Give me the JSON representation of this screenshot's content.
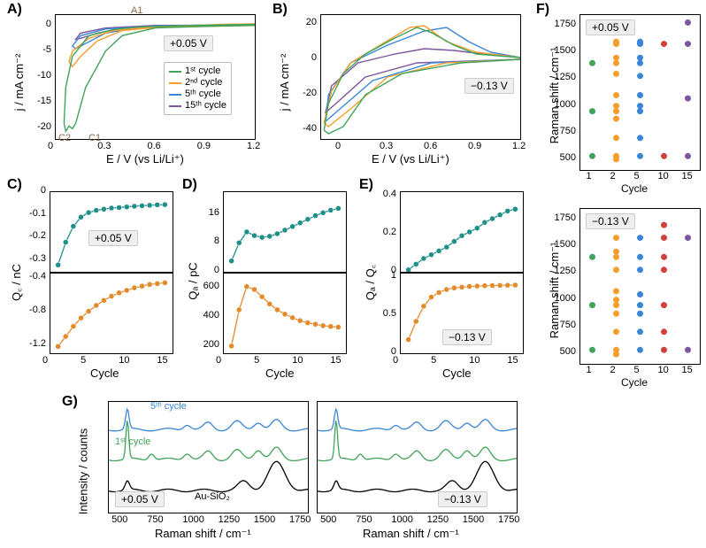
{
  "colors": {
    "c1": "#41a35a",
    "c2": "#f59e2d",
    "c5": "#3a86d6",
    "c10": "#d2403d",
    "c15": "#7c569e",
    "teal": "#1f8f89",
    "orange": "#e38a2a",
    "black": "#000000",
    "grid": "#e0e0e0",
    "badge_bg": "#efefef",
    "au_annot": "#8c6b49"
  },
  "panelA": {
    "label": "A)",
    "badge": "+0.05 V",
    "xlabel": "E / V (vs Li/Li⁺)",
    "ylabel": "j / mA cm⁻²",
    "xlim": [
      0,
      1.2
    ],
    "xticks": [
      0,
      0.3,
      0.6,
      0.9,
      1.2
    ],
    "ylim": [
      -22,
      2
    ],
    "yticks": [
      -20,
      -15,
      -10,
      -5,
      0
    ],
    "annot": {
      "A1": "A1",
      "C1": "C1",
      "C2": "C2"
    },
    "legend": [
      {
        "label": "1ˢᵗ cycle"
      },
      {
        "label": "2ⁿᵈ cycle"
      },
      {
        "label": "5ᵗʰ cycle"
      },
      {
        "label": "15ᵗʰ cycle"
      }
    ],
    "series": {
      "c1": [
        [
          1.2,
          0
        ],
        [
          0.9,
          -0.2
        ],
        [
          0.6,
          -0.5
        ],
        [
          0.4,
          -2
        ],
        [
          0.3,
          -5
        ],
        [
          0.18,
          -12
        ],
        [
          0.12,
          -19
        ],
        [
          0.1,
          -20
        ],
        [
          0.08,
          -19.5
        ],
        [
          0.06,
          -20.5
        ],
        [
          0.05,
          -19
        ],
        [
          0.06,
          -12
        ],
        [
          0.1,
          -6
        ],
        [
          0.2,
          -2
        ],
        [
          0.35,
          -0.8
        ],
        [
          0.5,
          -0.3
        ],
        [
          0.8,
          0
        ],
        [
          1.2,
          0.2
        ]
      ],
      "c2": [
        [
          1.2,
          0
        ],
        [
          0.9,
          -0.2
        ],
        [
          0.6,
          -0.4
        ],
        [
          0.4,
          -1
        ],
        [
          0.25,
          -3
        ],
        [
          0.15,
          -6
        ],
        [
          0.1,
          -8
        ],
        [
          0.08,
          -7
        ],
        [
          0.1,
          -5
        ],
        [
          0.2,
          -2.5
        ],
        [
          0.35,
          -1
        ],
        [
          0.6,
          -0.3
        ],
        [
          1.0,
          0.2
        ],
        [
          1.2,
          0.3
        ]
      ],
      "c5": [
        [
          1.2,
          0
        ],
        [
          0.8,
          -0.1
        ],
        [
          0.5,
          -0.4
        ],
        [
          0.3,
          -1.5
        ],
        [
          0.18,
          -3.5
        ],
        [
          0.12,
          -4.5
        ],
        [
          0.1,
          -4
        ],
        [
          0.15,
          -2
        ],
        [
          0.3,
          -0.7
        ],
        [
          0.6,
          -0.1
        ],
        [
          1.2,
          0.2
        ]
      ],
      "c15": [
        [
          1.2,
          0
        ],
        [
          0.7,
          -0.1
        ],
        [
          0.4,
          -0.5
        ],
        [
          0.25,
          -1.5
        ],
        [
          0.15,
          -2.5
        ],
        [
          0.12,
          -2.7
        ],
        [
          0.15,
          -1.5
        ],
        [
          0.3,
          -0.5
        ],
        [
          0.6,
          0
        ],
        [
          1.2,
          0.1
        ]
      ]
    }
  },
  "panelB": {
    "label": "B)",
    "badge": "−0.13 V",
    "xlabel": "E / V (vs Li/Li⁺)",
    "ylabel": "j / mA cm⁻²",
    "xlim": [
      -0.15,
      1.2
    ],
    "xticks": [
      0,
      0.3,
      0.6,
      0.9,
      1.2
    ],
    "ylim": [
      -45,
      25
    ],
    "yticks": [
      -40,
      -20,
      0,
      20
    ],
    "series": {
      "c1": [
        [
          1.2,
          0
        ],
        [
          0.8,
          -2
        ],
        [
          0.4,
          -8
        ],
        [
          0.15,
          -20
        ],
        [
          0.0,
          -38
        ],
        [
          -0.1,
          -42
        ],
        [
          -0.13,
          -40
        ],
        [
          -0.1,
          -25
        ],
        [
          0.0,
          -8
        ],
        [
          0.15,
          3
        ],
        [
          0.35,
          12
        ],
        [
          0.5,
          18
        ],
        [
          0.6,
          15
        ],
        [
          0.75,
          8
        ],
        [
          0.9,
          3
        ],
        [
          1.2,
          1
        ]
      ],
      "c2": [
        [
          1.2,
          0
        ],
        [
          0.7,
          -2
        ],
        [
          0.3,
          -10
        ],
        [
          0.05,
          -28
        ],
        [
          -0.1,
          -38
        ],
        [
          -0.13,
          -36
        ],
        [
          -0.08,
          -18
        ],
        [
          0.05,
          -2
        ],
        [
          0.25,
          8
        ],
        [
          0.45,
          18
        ],
        [
          0.55,
          19
        ],
        [
          0.7,
          10
        ],
        [
          0.9,
          4
        ],
        [
          1.2,
          1
        ]
      ],
      "c5": [
        [
          1.2,
          0
        ],
        [
          0.6,
          -2
        ],
        [
          0.2,
          -12
        ],
        [
          -0.05,
          -30
        ],
        [
          -0.12,
          -35
        ],
        [
          -0.1,
          -20
        ],
        [
          0.05,
          -2
        ],
        [
          0.3,
          8
        ],
        [
          0.55,
          16
        ],
        [
          0.7,
          18
        ],
        [
          0.85,
          10
        ],
        [
          1.0,
          4
        ],
        [
          1.2,
          1
        ]
      ],
      "c15": [
        [
          1.2,
          0
        ],
        [
          0.5,
          -2
        ],
        [
          0.15,
          -10
        ],
        [
          -0.05,
          -25
        ],
        [
          -0.12,
          -30
        ],
        [
          -0.08,
          -15
        ],
        [
          0.1,
          -2
        ],
        [
          0.35,
          3
        ],
        [
          0.55,
          6
        ],
        [
          0.75,
          5
        ],
        [
          0.95,
          3
        ],
        [
          1.2,
          1
        ]
      ]
    }
  },
  "panelC": {
    "label": "C)",
    "badge_top": "+0.05 V",
    "ylabel": "Q꜀ / nC",
    "xlabel": "Cycle",
    "xticks": [
      0,
      5,
      10,
      15
    ],
    "top": {
      "ylim": [
        -0.35,
        0
      ],
      "yticks": [
        -0.3,
        -0.2,
        -0.1,
        0.0
      ],
      "color": "teal",
      "data": [
        [
          1,
          -0.32
        ],
        [
          2,
          -0.22
        ],
        [
          3,
          -0.15
        ],
        [
          4,
          -0.11
        ],
        [
          5,
          -0.09
        ],
        [
          6,
          -0.08
        ],
        [
          7,
          -0.075
        ],
        [
          8,
          -0.07
        ],
        [
          9,
          -0.068
        ],
        [
          10,
          -0.065
        ],
        [
          11,
          -0.062
        ],
        [
          12,
          -0.06
        ],
        [
          13,
          -0.058
        ],
        [
          14,
          -0.056
        ],
        [
          15,
          -0.055
        ]
      ]
    },
    "bot": {
      "ylim": [
        -1.3,
        -0.35
      ],
      "yticks": [
        -1.2,
        -0.8,
        -0.4
      ],
      "color": "orange",
      "data": [
        [
          1,
          -1.22
        ],
        [
          2,
          -1.1
        ],
        [
          3,
          -0.98
        ],
        [
          4,
          -0.88
        ],
        [
          5,
          -0.8
        ],
        [
          6,
          -0.73
        ],
        [
          7,
          -0.67
        ],
        [
          8,
          -0.62
        ],
        [
          9,
          -0.58
        ],
        [
          10,
          -0.55
        ],
        [
          11,
          -0.52
        ],
        [
          12,
          -0.5
        ],
        [
          13,
          -0.48
        ],
        [
          14,
          -0.47
        ],
        [
          15,
          -0.46
        ]
      ]
    }
  },
  "panelD": {
    "label": "D)",
    "ylabel": "Qₐ / pC",
    "xlabel": "Cycle",
    "xticks": [
      0,
      5,
      10,
      15
    ],
    "top": {
      "ylim": [
        0,
        22
      ],
      "yticks": [
        0,
        8,
        16
      ],
      "color": "teal",
      "data": [
        [
          1,
          3
        ],
        [
          2,
          8
        ],
        [
          3,
          11
        ],
        [
          4,
          10
        ],
        [
          5,
          9.5
        ],
        [
          6,
          9.8
        ],
        [
          7,
          10.5
        ],
        [
          8,
          11.5
        ],
        [
          9,
          12.5
        ],
        [
          10,
          13.5
        ],
        [
          11,
          14.5
        ],
        [
          12,
          15.5
        ],
        [
          13,
          16.3
        ],
        [
          14,
          17
        ],
        [
          15,
          17.5
        ]
      ]
    },
    "bot": {
      "ylim": [
        150,
        700
      ],
      "yticks": [
        200,
        400,
        600
      ],
      "color": "orange",
      "data": [
        [
          1,
          200
        ],
        [
          2,
          450
        ],
        [
          3,
          610
        ],
        [
          4,
          590
        ],
        [
          5,
          540
        ],
        [
          6,
          490
        ],
        [
          7,
          450
        ],
        [
          8,
          420
        ],
        [
          9,
          395
        ],
        [
          10,
          375
        ],
        [
          11,
          360
        ],
        [
          12,
          350
        ],
        [
          13,
          340
        ],
        [
          14,
          335
        ],
        [
          15,
          330
        ]
      ]
    }
  },
  "panelE": {
    "label": "E)",
    "badge_bot": "−0.13 V",
    "ylabel": "Qₐ / Q꜀",
    "xlabel": "Cycle",
    "xticks": [
      0,
      5,
      10,
      15
    ],
    "top": {
      "ylim": [
        0,
        0.42
      ],
      "yticks": [
        0,
        0.2,
        0.4
      ],
      "color": "teal",
      "data": [
        [
          1,
          0.01
        ],
        [
          2,
          0.04
        ],
        [
          3,
          0.07
        ],
        [
          4,
          0.09
        ],
        [
          5,
          0.11
        ],
        [
          6,
          0.13
        ],
        [
          7,
          0.16
        ],
        [
          8,
          0.19
        ],
        [
          9,
          0.21
        ],
        [
          10,
          0.23
        ],
        [
          11,
          0.26
        ],
        [
          12,
          0.28
        ],
        [
          13,
          0.3
        ],
        [
          14,
          0.32
        ],
        [
          15,
          0.33
        ]
      ]
    },
    "bot": {
      "ylim": [
        0,
        1.05
      ],
      "yticks": [
        0,
        0.5,
        1
      ],
      "color": "orange",
      "data": [
        [
          1,
          0.18
        ],
        [
          2,
          0.42
        ],
        [
          3,
          0.62
        ],
        [
          4,
          0.74
        ],
        [
          5,
          0.8
        ],
        [
          6,
          0.84
        ],
        [
          7,
          0.86
        ],
        [
          8,
          0.87
        ],
        [
          9,
          0.88
        ],
        [
          10,
          0.885
        ],
        [
          11,
          0.89
        ],
        [
          12,
          0.892
        ],
        [
          13,
          0.894
        ],
        [
          14,
          0.896
        ],
        [
          15,
          0.898
        ]
      ]
    }
  },
  "panelF": {
    "label": "F)",
    "ylabel": "Raman shift / cm⁻¹",
    "xticks": [
      1,
      2,
      5,
      10,
      15
    ],
    "xlabel": "Cycle",
    "ylim": [
      400,
      1850
    ],
    "yticks": [
      500,
      750,
      1000,
      1250,
      1500,
      1750
    ],
    "top_badge": "+0.05 V",
    "bot_badge": "−0.13 V",
    "cycle_colors": {
      "1": "c1",
      "2": "c2",
      "5": "c5",
      "10": "c10",
      "15": "c15"
    },
    "top_points": {
      "1": [
        530,
        950,
        1400
      ],
      "2": [
        500,
        530,
        700,
        880,
        950,
        1000,
        1100,
        1300,
        1400,
        1450,
        1580,
        1600
      ],
      "5": [
        530,
        700,
        950,
        1000,
        1100,
        1280,
        1400,
        1450,
        1580,
        1600
      ],
      "10": [
        530,
        1580
      ],
      "15": [
        530,
        1070,
        1580,
        1780
      ]
    },
    "bot_points": {
      "1": [
        530,
        950,
        1400
      ],
      "2": [
        490,
        530,
        700,
        870,
        950,
        1000,
        1080,
        1280,
        1400,
        1450,
        1580
      ],
      "5": [
        530,
        700,
        870,
        950,
        1050,
        1280,
        1400,
        1580
      ],
      "10": [
        530,
        700,
        950,
        1280,
        1400,
        1580,
        1700
      ],
      "15": [
        530,
        1580
      ]
    }
  },
  "panelG": {
    "label": "G)",
    "ylabel": "Intensity / counts",
    "xlabel": "Raman shift / cm⁻¹",
    "xlim": [
      400,
      1800
    ],
    "xticks": [
      500,
      750,
      1000,
      1250,
      1500,
      1750
    ],
    "left_badge": "+0.05 V",
    "right_badge": "−0.13 V",
    "trace_labels": {
      "cyc5": "5ᵗʰ cycle",
      "cyc1": "1ˢᵗ cycle",
      "au": "Au-SiO₂"
    }
  }
}
